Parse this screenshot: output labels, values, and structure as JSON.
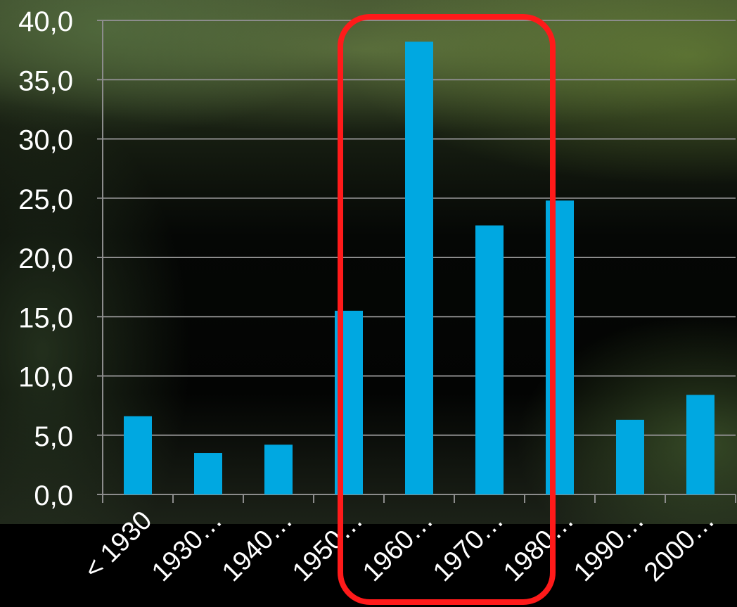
{
  "chart_data": {
    "type": "bar",
    "categories": [
      "< 1930",
      "1930…",
      "1940…",
      "1950…",
      "1960…",
      "1970…",
      "1980…",
      "1990…",
      "2000…"
    ],
    "values": [
      6.6,
      3.5,
      4.2,
      15.5,
      38.2,
      22.7,
      24.8,
      6.3,
      8.4
    ],
    "ylim": [
      0,
      40
    ],
    "yticks": [
      "0,0",
      "5,0",
      "10,0",
      "15,0",
      "20,0",
      "25,0",
      "30,0",
      "35,0",
      "40,0"
    ],
    "grid": true,
    "bar_color": "#00a8e1",
    "highlight": {
      "categories": [
        "1950…",
        "1960…",
        "1970…"
      ],
      "color": "#ff1a1a"
    }
  }
}
